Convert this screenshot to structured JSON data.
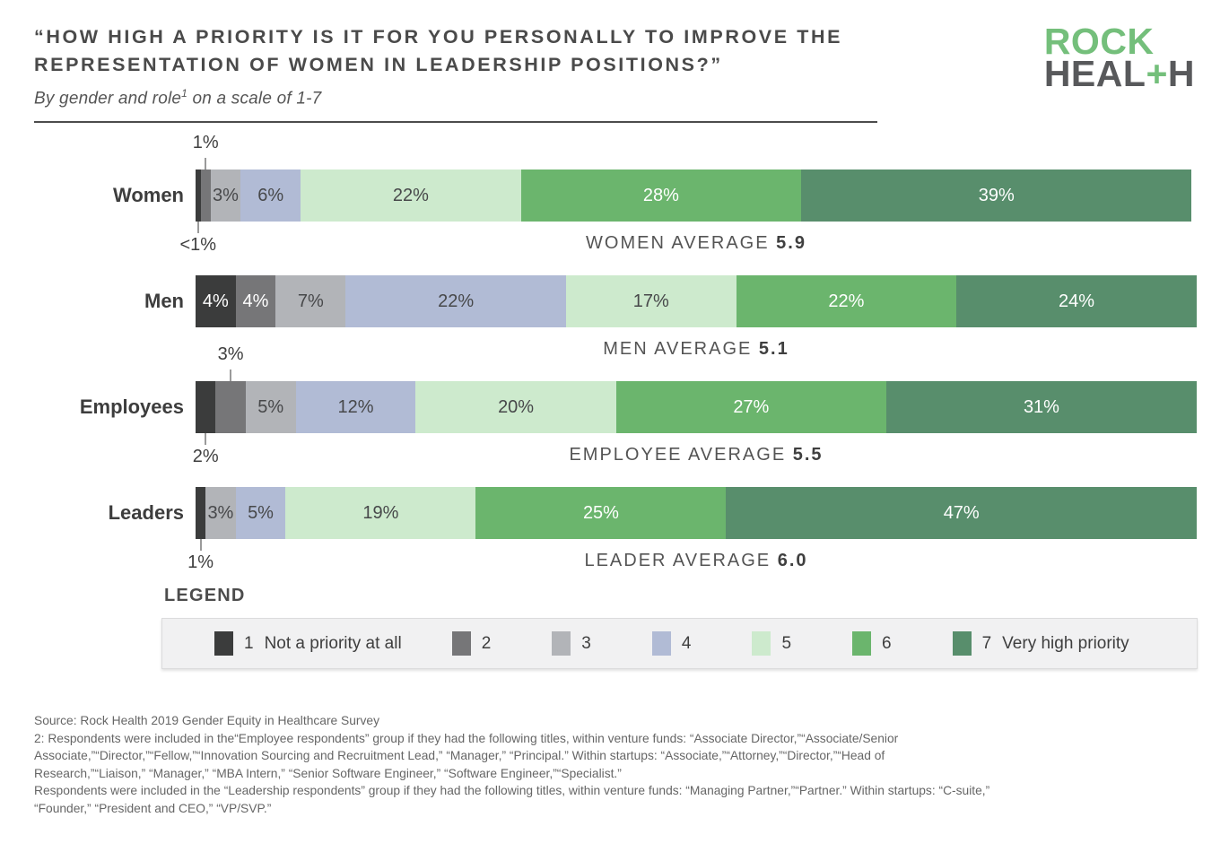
{
  "header": {
    "title_line1": "“HOW HIGH A PRIORITY IS IT FOR YOU PERSONALLY TO IMPROVE THE",
    "title_line2": "REPRESENTATION OF WOMEN IN LEADERSHIP POSITIONS?”",
    "subtitle_pre": "By gender and role",
    "subtitle_sup": "1",
    "subtitle_post": " on a scale of 1-7",
    "logo": {
      "line1": "ROCK",
      "heal": "HEAL",
      "plus": "+",
      "h": "H",
      "green": "#74bf7b",
      "gray": "#58595b"
    }
  },
  "chart_data": {
    "type": "bar",
    "stacked": true,
    "orientation": "horizontal",
    "title": "How high a priority is it for you personally to improve the representation of women in leadership positions?",
    "subtitle": "By gender and role(1) on a scale of 1-7",
    "scale_range": [
      1,
      7
    ],
    "categories": [
      "Women",
      "Men",
      "Employees",
      "Leaders"
    ],
    "colors": {
      "1": "#3b3c3c",
      "2": "#767678",
      "3": "#b2b4b8",
      "4": "#b1bbd5",
      "5": "#cdeacd",
      "6": "#6bb56d",
      "7": "#588e6c"
    },
    "text_colors": {
      "1": "#ffffff",
      "2": "#ffffff",
      "3": "#47484a",
      "4": "#47484a",
      "5": "#47484a",
      "6": "#ffffff",
      "7": "#ffffff"
    },
    "rows": [
      {
        "label": "Women",
        "average_label": "WOMEN AVERAGE",
        "average_value": "5.9",
        "segments": [
          {
            "value": 1,
            "pct": 0.5,
            "display": "<1%",
            "placement": "below"
          },
          {
            "value": 2,
            "pct": 1,
            "display": "1%",
            "placement": "above"
          },
          {
            "value": 3,
            "pct": 3,
            "display": "3%",
            "placement": "inside"
          },
          {
            "value": 4,
            "pct": 6,
            "display": "6%",
            "placement": "inside"
          },
          {
            "value": 5,
            "pct": 22,
            "display": "22%",
            "placement": "inside"
          },
          {
            "value": 6,
            "pct": 28,
            "display": "28%",
            "placement": "inside"
          },
          {
            "value": 7,
            "pct": 39,
            "display": "39%",
            "placement": "inside"
          }
        ]
      },
      {
        "label": "Men",
        "average_label": "MEN AVERAGE",
        "average_value": "5.1",
        "segments": [
          {
            "value": 1,
            "pct": 4,
            "display": "4%",
            "placement": "inside"
          },
          {
            "value": 2,
            "pct": 4,
            "display": "4%",
            "placement": "inside"
          },
          {
            "value": 3,
            "pct": 7,
            "display": "7%",
            "placement": "inside"
          },
          {
            "value": 4,
            "pct": 22,
            "display": "22%",
            "placement": "inside"
          },
          {
            "value": 5,
            "pct": 17,
            "display": "17%",
            "placement": "inside"
          },
          {
            "value": 6,
            "pct": 22,
            "display": "22%",
            "placement": "inside"
          },
          {
            "value": 7,
            "pct": 24,
            "display": "24%",
            "placement": "inside"
          }
        ]
      },
      {
        "label": "Employees",
        "average_label": "EMPLOYEE AVERAGE",
        "average_value": "5.5",
        "segments": [
          {
            "value": 1,
            "pct": 2,
            "display": "2%",
            "placement": "below"
          },
          {
            "value": 2,
            "pct": 3,
            "display": "3%",
            "placement": "above"
          },
          {
            "value": 3,
            "pct": 5,
            "display": "5%",
            "placement": "inside"
          },
          {
            "value": 4,
            "pct": 12,
            "display": "12%",
            "placement": "inside"
          },
          {
            "value": 5,
            "pct": 20,
            "display": "20%",
            "placement": "inside"
          },
          {
            "value": 6,
            "pct": 27,
            "display": "27%",
            "placement": "inside"
          },
          {
            "value": 7,
            "pct": 31,
            "display": "31%",
            "placement": "inside"
          }
        ]
      },
      {
        "label": "Leaders",
        "average_label": "LEADER AVERAGE",
        "average_value": "6.0",
        "segments": [
          {
            "value": 1,
            "pct": 1,
            "display": "1%",
            "placement": "below"
          },
          {
            "value": 3,
            "pct": 3,
            "display": "3%",
            "placement": "inside"
          },
          {
            "value": 4,
            "pct": 5,
            "display": "5%",
            "placement": "inside"
          },
          {
            "value": 5,
            "pct": 19,
            "display": "19%",
            "placement": "inside"
          },
          {
            "value": 6,
            "pct": 25,
            "display": "25%",
            "placement": "inside"
          },
          {
            "value": 7,
            "pct": 47,
            "display": "47%",
            "placement": "inside"
          }
        ]
      }
    ]
  },
  "legend": {
    "heading": "LEGEND",
    "items": [
      {
        "value": "1",
        "label": "Not a priority at all"
      },
      {
        "value": "2",
        "label": ""
      },
      {
        "value": "3",
        "label": ""
      },
      {
        "value": "4",
        "label": ""
      },
      {
        "value": "5",
        "label": ""
      },
      {
        "value": "6",
        "label": ""
      },
      {
        "value": "7",
        "label": "Very high priority"
      }
    ]
  },
  "footnotes": [
    "Source: Rock Health 2019 Gender Equity in Healthcare Survey",
    "2: Respondents were included in the“Employee respondents” group if they had the following titles, within venture funds: “Associate Director,”“Associate/Senior",
    "Associate,”“Director,”“Fellow,”“Innovation Sourcing and Recruitment Lead,” “Manager,” “Principal.” Within startups: “Associate,”“Attorney,”“Director,”“Head of",
    "Research,”“Liaison,” “Manager,” “MBA Intern,” “Senior Software Engineer,” “Software Engineer,”“Specialist.”",
    "Respondents were included in the “Leadership respondents” group if they had the following titles, within venture funds: “Managing Partner,”“Partner.” Within startups: “C-suite,”",
    "“Founder,” “President and CEO,” “VP/SVP.”"
  ]
}
